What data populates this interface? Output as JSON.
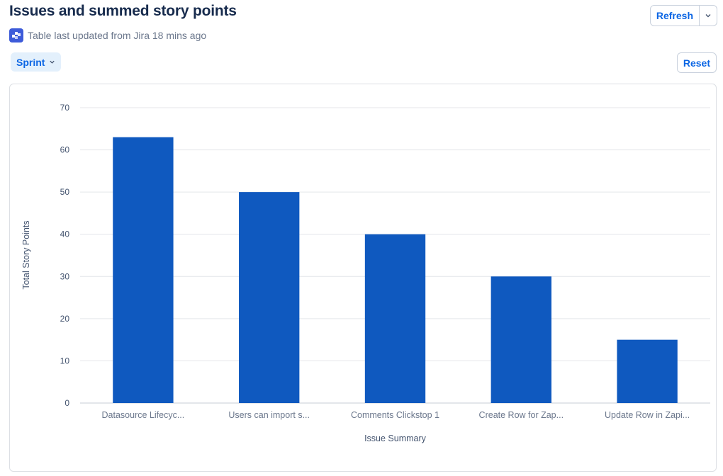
{
  "header": {
    "title": "Issues and summed story points",
    "subtitle": "Table last updated from Jira 18 mins ago",
    "source_icon": "jira-icon"
  },
  "toolbar": {
    "refresh_label": "Refresh",
    "refresh_menu_icon": "chevron-down-icon",
    "filter_label": "Sprint",
    "filter_icon": "chevron-down-icon",
    "reset_label": "Reset"
  },
  "colors": {
    "bar": "#0f59bf",
    "accent": "#0c66e4",
    "filter_bg": "#e3f0fc"
  },
  "chart_data": {
    "type": "bar",
    "categories": [
      "Datasource Lifecyc...",
      "Users can import s...",
      "Comments Clickstop 1",
      "Create Row for Zap...",
      "Update Row in Zapi..."
    ],
    "values": [
      63,
      50,
      40,
      30,
      15
    ],
    "xlabel": "Issue Summary",
    "ylabel": "Total Story Points",
    "ylim": [
      0,
      70
    ],
    "yticks": [
      0,
      10,
      20,
      30,
      40,
      50,
      60,
      70
    ],
    "grid": true
  }
}
